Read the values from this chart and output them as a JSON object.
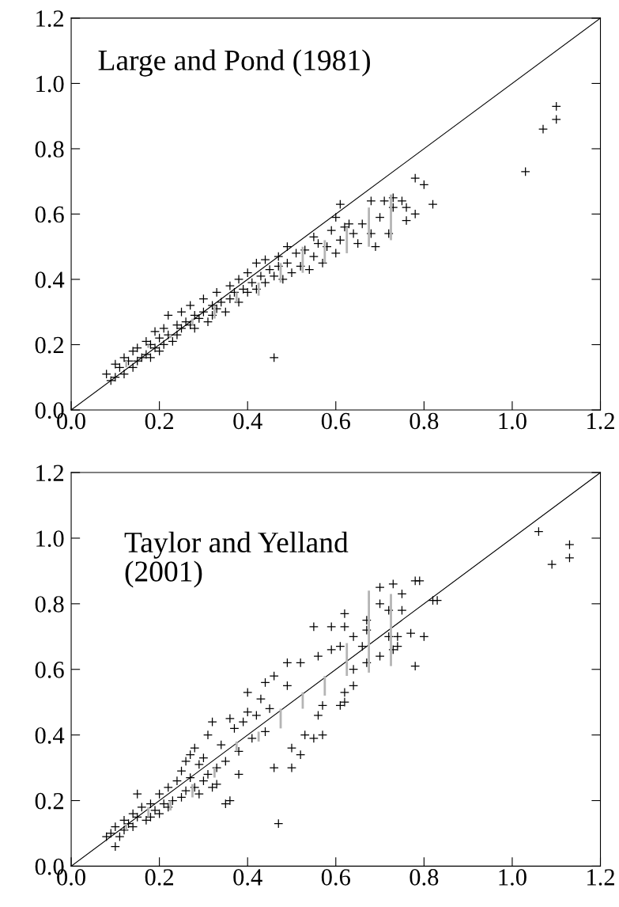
{
  "chart_data": [
    {
      "type": "scatter",
      "annotations": [
        "Large and Pond (1981)"
      ],
      "xlim": [
        0,
        1.2
      ],
      "ylim": [
        0,
        1.2
      ],
      "xticks": [
        {
          "value": 0,
          "label": "0.0"
        },
        {
          "value": 0.2,
          "label": "0.2"
        },
        {
          "value": 0.4,
          "label": "0.4"
        },
        {
          "value": 0.6,
          "label": "0.6"
        },
        {
          "value": 0.8,
          "label": "0.8"
        },
        {
          "value": 1.0,
          "label": "1.0"
        },
        {
          "value": 1.2,
          "label": "1.2"
        }
      ],
      "yticks": [
        {
          "value": 0,
          "label": "0.0"
        },
        {
          "value": 0.2,
          "label": "0.2"
        },
        {
          "value": 0.4,
          "label": "0.4"
        },
        {
          "value": 0.6,
          "label": "0.6"
        },
        {
          "value": 0.8,
          "label": "0.8"
        },
        {
          "value": 1.0,
          "label": "1.0"
        },
        {
          "value": 1.2,
          "label": "1.2"
        }
      ],
      "grid": false,
      "legend": false,
      "series": [
        {
          "type": "line",
          "color": "#000000",
          "marker": "none",
          "x": [
            0,
            1.2
          ],
          "values": [
            0,
            1.2
          ]
        },
        {
          "type": "scatter",
          "color": "#000000",
          "marker": "cross",
          "x": [
            0.08,
            0.09,
            0.1,
            0.1,
            0.11,
            0.12,
            0.12,
            0.13,
            0.14,
            0.14,
            0.15,
            0.15,
            0.16,
            0.17,
            0.17,
            0.18,
            0.18,
            0.19,
            0.19,
            0.2,
            0.2,
            0.21,
            0.21,
            0.22,
            0.22,
            0.23,
            0.24,
            0.24,
            0.25,
            0.25,
            0.26,
            0.27,
            0.27,
            0.28,
            0.28,
            0.29,
            0.3,
            0.3,
            0.31,
            0.32,
            0.32,
            0.33,
            0.33,
            0.34,
            0.35,
            0.36,
            0.36,
            0.37,
            0.38,
            0.38,
            0.39,
            0.4,
            0.4,
            0.41,
            0.42,
            0.42,
            0.43,
            0.44,
            0.44,
            0.45,
            0.46,
            0.47,
            0.47,
            0.48,
            0.49,
            0.49,
            0.5,
            0.51,
            0.52,
            0.53,
            0.54,
            0.55,
            0.55,
            0.56,
            0.57,
            0.58,
            0.59,
            0.6,
            0.61,
            0.62,
            0.64,
            0.65,
            0.66,
            0.46,
            1.1,
            1.1,
            1.07,
            1.03,
            0.78,
            0.8,
            0.82,
            0.61,
            0.68,
            0.71,
            0.73,
            0.75,
            0.73,
            0.76,
            0.78,
            0.76,
            0.72,
            0.69,
            0.7,
            0.68,
            0.63,
            0.6
          ],
          "values": [
            0.11,
            0.09,
            0.14,
            0.1,
            0.13,
            0.16,
            0.11,
            0.15,
            0.18,
            0.13,
            0.19,
            0.15,
            0.16,
            0.21,
            0.17,
            0.2,
            0.16,
            0.24,
            0.19,
            0.22,
            0.18,
            0.25,
            0.2,
            0.29,
            0.23,
            0.21,
            0.26,
            0.23,
            0.3,
            0.25,
            0.27,
            0.32,
            0.26,
            0.29,
            0.25,
            0.28,
            0.34,
            0.3,
            0.27,
            0.32,
            0.29,
            0.36,
            0.31,
            0.33,
            0.3,
            0.38,
            0.34,
            0.36,
            0.4,
            0.33,
            0.37,
            0.42,
            0.36,
            0.39,
            0.45,
            0.37,
            0.41,
            0.46,
            0.39,
            0.43,
            0.41,
            0.47,
            0.44,
            0.4,
            0.5,
            0.45,
            0.42,
            0.48,
            0.44,
            0.49,
            0.43,
            0.53,
            0.47,
            0.51,
            0.45,
            0.5,
            0.55,
            0.48,
            0.52,
            0.56,
            0.54,
            0.51,
            0.57,
            0.16,
            0.93,
            0.89,
            0.86,
            0.73,
            0.71,
            0.69,
            0.63,
            0.63,
            0.64,
            0.64,
            0.65,
            0.64,
            0.62,
            0.62,
            0.6,
            0.58,
            0.54,
            0.5,
            0.59,
            0.54,
            0.57,
            0.59
          ]
        },
        {
          "type": "bar",
          "color": "#b4b4b4",
          "x": [
            0.125,
            0.175,
            0.225,
            0.275,
            0.325,
            0.375,
            0.425,
            0.475,
            0.525,
            0.575,
            0.625,
            0.675,
            0.725
          ],
          "base": [
            0.13,
            0.19,
            0.22,
            0.26,
            0.28,
            0.33,
            0.35,
            0.39,
            0.42,
            0.45,
            0.48,
            0.5,
            0.52
          ],
          "values": [
            0.02,
            0.01,
            0.01,
            0.02,
            0.04,
            0.03,
            0.04,
            0.06,
            0.08,
            0.07,
            0.08,
            0.12,
            0.14
          ]
        }
      ]
    },
    {
      "type": "scatter",
      "annotations": [
        "Taylor and Yelland\n(2001)"
      ],
      "xlim": [
        0,
        1.2
      ],
      "ylim": [
        0,
        1.2
      ],
      "xticks": [
        {
          "value": 0,
          "label": "0.0"
        },
        {
          "value": 0.2,
          "label": "0.2"
        },
        {
          "value": 0.4,
          "label": "0.4"
        },
        {
          "value": 0.6,
          "label": "0.6"
        },
        {
          "value": 0.8,
          "label": "0.8"
        },
        {
          "value": 1.0,
          "label": "1.0"
        },
        {
          "value": 1.2,
          "label": "1.2"
        }
      ],
      "yticks": [
        {
          "value": 0,
          "label": "0.0"
        },
        {
          "value": 0.2,
          "label": "0.2"
        },
        {
          "value": 0.4,
          "label": "0.4"
        },
        {
          "value": 0.6,
          "label": "0.6"
        },
        {
          "value": 0.8,
          "label": "0.8"
        },
        {
          "value": 1.0,
          "label": "1.0"
        },
        {
          "value": 1.2,
          "label": "1.2"
        }
      ],
      "grid": false,
      "legend": false,
      "series": [
        {
          "type": "line",
          "color": "#000000",
          "marker": "none",
          "x": [
            0,
            1.2
          ],
          "values": [
            0,
            1.2
          ]
        },
        {
          "type": "scatter",
          "color": "#000000",
          "marker": "cross",
          "x": [
            1.06,
            1.13,
            1.13,
            1.09,
            0.78,
            0.8,
            0.77,
            0.82,
            0.83,
            0.78,
            0.79,
            0.7,
            0.73,
            0.75,
            0.7,
            0.72,
            0.75,
            0.72,
            0.74,
            0.73,
            0.74,
            0.7,
            0.67,
            0.67,
            0.62,
            0.62,
            0.64,
            0.61,
            0.66,
            0.64,
            0.67,
            0.55,
            0.59,
            0.59,
            0.56,
            0.44,
            0.46,
            0.49,
            0.52,
            0.49,
            0.4,
            0.43,
            0.32,
            0.36,
            0.31,
            0.53,
            0.57,
            0.55,
            0.5,
            0.52,
            0.46,
            0.5,
            0.61,
            0.62,
            0.56,
            0.57,
            0.62,
            0.64,
            0.27,
            0.25,
            0.32,
            0.35,
            0.36,
            0.47,
            0.1,
            0.08,
            0.15,
            0.09,
            0.1,
            0.11,
            0.12,
            0.12,
            0.13,
            0.14,
            0.14,
            0.15,
            0.16,
            0.17,
            0.18,
            0.18,
            0.19,
            0.2,
            0.2,
            0.21,
            0.22,
            0.22,
            0.23,
            0.24,
            0.25,
            0.26,
            0.27,
            0.28,
            0.29,
            0.3,
            0.3,
            0.31,
            0.33,
            0.34,
            0.35,
            0.37,
            0.38,
            0.39,
            0.41,
            0.42,
            0.44,
            0.45,
            0.26,
            0.28,
            0.29,
            0.33,
            0.38,
            0.4
          ],
          "values": [
            1.02,
            0.98,
            0.94,
            0.92,
            0.61,
            0.7,
            0.71,
            0.81,
            0.81,
            0.87,
            0.87,
            0.85,
            0.86,
            0.83,
            0.8,
            0.78,
            0.78,
            0.7,
            0.7,
            0.66,
            0.67,
            0.64,
            0.72,
            0.75,
            0.77,
            0.73,
            0.7,
            0.67,
            0.67,
            0.6,
            0.62,
            0.73,
            0.73,
            0.66,
            0.64,
            0.56,
            0.58,
            0.62,
            0.62,
            0.55,
            0.53,
            0.51,
            0.44,
            0.45,
            0.4,
            0.4,
            0.4,
            0.39,
            0.36,
            0.34,
            0.3,
            0.3,
            0.49,
            0.5,
            0.46,
            0.49,
            0.53,
            0.55,
            0.34,
            0.29,
            0.24,
            0.19,
            0.2,
            0.13,
            0.06,
            0.09,
            0.22,
            0.1,
            0.12,
            0.09,
            0.14,
            0.11,
            0.13,
            0.16,
            0.12,
            0.15,
            0.18,
            0.14,
            0.19,
            0.15,
            0.17,
            0.22,
            0.16,
            0.19,
            0.24,
            0.18,
            0.2,
            0.26,
            0.21,
            0.23,
            0.27,
            0.24,
            0.31,
            0.26,
            0.33,
            0.28,
            0.3,
            0.37,
            0.32,
            0.42,
            0.35,
            0.44,
            0.39,
            0.46,
            0.41,
            0.48,
            0.32,
            0.36,
            0.22,
            0.25,
            0.28,
            0.47
          ]
        },
        {
          "type": "bar",
          "color": "#b4b4b4",
          "x": [
            0.125,
            0.175,
            0.225,
            0.275,
            0.325,
            0.375,
            0.425,
            0.475,
            0.525,
            0.575,
            0.625,
            0.675,
            0.725
          ],
          "base": [
            0.11,
            0.15,
            0.17,
            0.21,
            0.27,
            0.35,
            0.38,
            0.42,
            0.48,
            0.52,
            0.58,
            0.59,
            0.61
          ],
          "values": [
            0.02,
            0.03,
            0.03,
            0.04,
            0.03,
            0.03,
            0.03,
            0.06,
            0.05,
            0.06,
            0.1,
            0.25,
            0.22
          ]
        }
      ]
    }
  ]
}
